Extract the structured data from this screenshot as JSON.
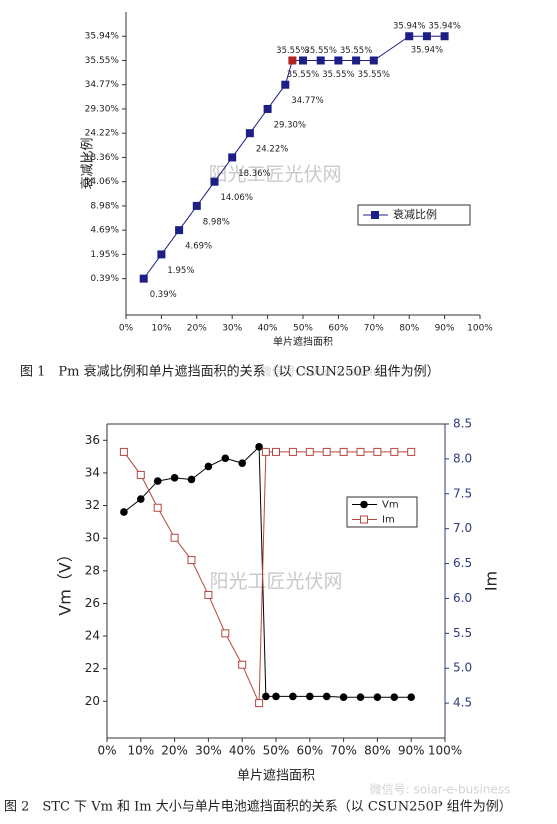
{
  "chart_data": [
    {
      "type": "line",
      "yscale": "ordinal",
      "x_label": "单片遮挡面积",
      "y_label": "衰减比例",
      "caption": "图 1　Pm 衰减比例和单片遮挡面积的关系（以 CSUN250P 组件为例）",
      "watermarks": [
        "阳光工匠光伏网",
        "微信号: solar-e-business"
      ],
      "x": [
        5,
        10,
        15,
        20,
        25,
        30,
        35,
        40,
        45,
        47,
        50,
        55,
        60,
        65,
        70,
        80,
        85,
        90
      ],
      "series": [
        {
          "name": "衰减比例",
          "color": "#1c1f86",
          "marker": "square",
          "values": [
            0.39,
            1.95,
            4.69,
            8.98,
            14.06,
            18.36,
            24.22,
            29.3,
            34.77,
            35.55,
            35.55,
            35.55,
            35.55,
            35.55,
            35.55,
            35.94,
            35.94,
            35.94
          ],
          "value_labels": [
            "0.39%",
            "1.95%",
            "4.69%",
            "8.98%",
            "14.06%",
            "18.36%",
            "24.22%",
            "29.30%",
            "34.77%",
            "35.55%",
            "35.55%",
            "35.55%",
            "35.55%",
            "35.55%",
            "35.55%",
            "35.94%",
            "35.94%",
            "35.94%"
          ],
          "marker_colors": [
            "#1c1f86",
            "#1c1f86",
            "#1c1f86",
            "#1c1f86",
            "#1c1f86",
            "#1c1f86",
            "#1c1f86",
            "#1c1f86",
            "#1c1f86",
            "#b22222",
            "#1c1f86",
            "#1c1f86",
            "#1c1f86",
            "#1c1f86",
            "#1c1f86",
            "#1c1f86",
            "#1c1f86",
            "#1c1f86"
          ]
        }
      ],
      "xlim": [
        0,
        100
      ],
      "xticks": [
        {
          "value": 0,
          "label": "0%"
        },
        {
          "value": 10,
          "label": "10%"
        },
        {
          "value": 20,
          "label": "20%"
        },
        {
          "value": 30,
          "label": "30%"
        },
        {
          "value": 40,
          "label": "40%"
        },
        {
          "value": 50,
          "label": "50%"
        },
        {
          "value": 60,
          "label": "60%"
        },
        {
          "value": 70,
          "label": "70%"
        },
        {
          "value": 80,
          "label": "80%"
        },
        {
          "value": 90,
          "label": "90%"
        },
        {
          "value": 100,
          "label": "100%"
        }
      ],
      "yticks": [
        {
          "value": 0.39,
          "label": "0.39%"
        },
        {
          "value": 1.95,
          "label": "1.95%"
        },
        {
          "value": 4.69,
          "label": "4.69%"
        },
        {
          "value": 8.98,
          "label": "8.98%"
        },
        {
          "value": 14.06,
          "label": "14.06%"
        },
        {
          "value": 18.36,
          "label": "18.36%"
        },
        {
          "value": 24.22,
          "label": "24.22%"
        },
        {
          "value": 29.3,
          "label": "29.30%"
        },
        {
          "value": 34.77,
          "label": "34.77%"
        },
        {
          "value": 35.55,
          "label": "35.55%"
        },
        {
          "value": 35.94,
          "label": "35.94%"
        }
      ]
    },
    {
      "type": "line",
      "yscale": "linear",
      "x_label": "单片遮挡面积",
      "y_label": "Vm（V）",
      "y2_label": "Im",
      "y2_color": "#2f3b7a",
      "caption": "图 2　STC 下 Vm 和 Im 大小与单片电池遮挡面积的关系（以 CSUN250P 组件为例）",
      "watermarks": [
        "阳光工匠光伏网",
        "微信号: solar-e-business"
      ],
      "x": [
        5,
        10,
        15,
        20,
        25,
        30,
        35,
        40,
        45,
        47,
        50,
        55,
        60,
        65,
        70,
        75,
        80,
        85,
        90
      ],
      "series": [
        {
          "name": "Vm",
          "color": "#000000",
          "marker": "circle",
          "axis": "y",
          "values": [
            31.6,
            32.4,
            33.5,
            33.7,
            33.6,
            34.4,
            34.9,
            34.6,
            35.6,
            20.3,
            20.3,
            20.3,
            20.3,
            20.3,
            20.25,
            20.25,
            20.25,
            20.25,
            20.25
          ]
        },
        {
          "name": "Im",
          "color": "#b5473f",
          "marker": "square-open",
          "axis": "y2",
          "values": [
            8.1,
            7.77,
            7.3,
            6.87,
            6.55,
            6.05,
            5.5,
            5.05,
            4.5,
            8.1,
            8.1,
            8.1,
            8.1,
            8.1,
            8.1,
            8.1,
            8.1,
            8.1,
            8.1
          ]
        }
      ],
      "xlim": [
        0,
        100
      ],
      "xticks": [
        {
          "value": 0,
          "label": "0%"
        },
        {
          "value": 10,
          "label": "10%"
        },
        {
          "value": 20,
          "label": "20%"
        },
        {
          "value": 30,
          "label": "30%"
        },
        {
          "value": 40,
          "label": "40%"
        },
        {
          "value": 50,
          "label": "50%"
        },
        {
          "value": 60,
          "label": "60%"
        },
        {
          "value": 70,
          "label": "70%"
        },
        {
          "value": 80,
          "label": "80%"
        },
        {
          "value": 90,
          "label": "90%"
        },
        {
          "value": 100,
          "label": "100%"
        }
      ],
      "ylim": [
        17.75,
        37
      ],
      "yticks": [
        20,
        22,
        24,
        26,
        28,
        30,
        32,
        34,
        36
      ],
      "y2lim": [
        4.0,
        8.5
      ],
      "y2ticks": [
        4.5,
        5.0,
        5.5,
        6.0,
        6.5,
        7.0,
        7.5,
        8.0,
        8.5
      ]
    }
  ]
}
